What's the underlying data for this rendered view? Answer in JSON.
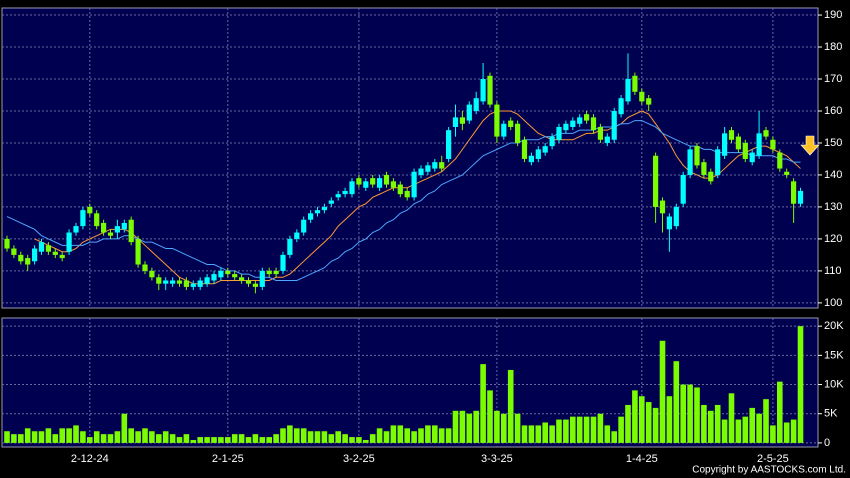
{
  "chart_data": {
    "type": "candlestick",
    "categories": [
      null,
      null,
      null,
      null,
      null,
      null,
      null,
      null,
      null,
      null,
      null,
      null,
      "2-12-24",
      null,
      null,
      null,
      null,
      null,
      null,
      null,
      null,
      null,
      null,
      null,
      null,
      null,
      null,
      null,
      null,
      null,
      null,
      null,
      "2-1-25",
      null,
      null,
      null,
      null,
      null,
      null,
      null,
      null,
      null,
      null,
      null,
      null,
      null,
      null,
      null,
      null,
      null,
      null,
      "3-2-25",
      null,
      null,
      null,
      null,
      null,
      null,
      null,
      null,
      null,
      null,
      null,
      null,
      null,
      null,
      null,
      null,
      null,
      null,
      null,
      "3-3-25",
      null,
      null,
      null,
      null,
      null,
      null,
      null,
      null,
      null,
      null,
      null,
      null,
      null,
      null,
      null,
      null,
      null,
      null,
      null,
      null,
      "1-4-25",
      null,
      null,
      null,
      null,
      null,
      null,
      null,
      null,
      null,
      null,
      null,
      null,
      null,
      null,
      null,
      null,
      null,
      null,
      "2-5-25",
      null,
      null,
      null,
      null
    ],
    "open": [
      120,
      117,
      115,
      114,
      113,
      116,
      118,
      116,
      115,
      116,
      122,
      124,
      130,
      128,
      125,
      122,
      122,
      123,
      126,
      120,
      112,
      110,
      108,
      106,
      106,
      107,
      107,
      105,
      105,
      106,
      107,
      108,
      110,
      109,
      108,
      107,
      106,
      105,
      110,
      110,
      110,
      115,
      120,
      122,
      126,
      128,
      129,
      131,
      133,
      134,
      134,
      139,
      136,
      139,
      136,
      140,
      138,
      137,
      135,
      133,
      140,
      141,
      142,
      144,
      145,
      155,
      158,
      157,
      160,
      163,
      171,
      162,
      152,
      157,
      156,
      151,
      144,
      145,
      147,
      149,
      151,
      154,
      155,
      156,
      159,
      158,
      155,
      150,
      151,
      159,
      163,
      171,
      166,
      164,
      146,
      132,
      123,
      124,
      131,
      140,
      149,
      144,
      141,
      140,
      146,
      154,
      152,
      150,
      144,
      146,
      154,
      151,
      147,
      141,
      138,
      131
    ],
    "high": [
      121,
      118,
      116,
      115,
      118,
      120,
      119,
      117,
      116,
      123,
      125,
      130,
      131,
      129,
      126,
      123,
      126,
      126,
      127,
      121,
      113,
      111,
      109,
      108,
      108,
      108,
      108,
      107,
      108,
      109,
      110,
      111,
      111,
      110,
      109,
      108,
      107,
      111,
      111,
      111,
      116,
      121,
      123,
      127,
      129,
      130,
      131,
      133,
      135,
      136,
      139,
      140,
      139,
      140,
      140,
      141,
      139,
      138,
      136,
      142,
      143,
      144,
      145,
      146,
      155,
      162,
      160,
      163,
      166,
      175,
      172,
      163,
      157,
      158,
      157,
      152,
      147,
      149,
      150,
      153,
      156,
      157,
      158,
      159,
      160,
      159,
      156,
      153,
      161,
      165,
      178,
      172,
      167,
      165,
      147,
      133,
      128,
      131,
      141,
      149,
      150,
      145,
      142,
      149,
      155,
      155,
      153,
      151,
      148,
      160,
      155,
      152,
      148,
      142,
      139,
      136
    ],
    "low": [
      116,
      114,
      112,
      110,
      112,
      115,
      115,
      114,
      113,
      115,
      121,
      123,
      127,
      123,
      121,
      120,
      120,
      122,
      118,
      111,
      109,
      107,
      104,
      104,
      105,
      105,
      104,
      104,
      104,
      105,
      106,
      107,
      108,
      107,
      106,
      105,
      103,
      104,
      108,
      108,
      109,
      114,
      119,
      121,
      125,
      127,
      128,
      130,
      132,
      133,
      133,
      136,
      135,
      136,
      135,
      136,
      135,
      133,
      132,
      132,
      139,
      140,
      141,
      141,
      144,
      152,
      154,
      156,
      159,
      162,
      161,
      150,
      151,
      154,
      149,
      144,
      143,
      144,
      146,
      148,
      150,
      153,
      154,
      155,
      156,
      153,
      150,
      149,
      150,
      158,
      162,
      165,
      162,
      160,
      125,
      122,
      116,
      123,
      130,
      139,
      142,
      139,
      137,
      139,
      145,
      150,
      147,
      144,
      143,
      145,
      151,
      147,
      141,
      139,
      125,
      130
    ],
    "close": [
      117,
      115,
      113,
      112,
      117,
      119,
      116,
      115,
      114,
      122,
      124,
      129,
      128,
      124,
      122,
      121,
      124,
      125,
      119,
      112,
      110,
      108,
      106,
      107,
      107,
      106,
      105,
      106,
      107,
      108,
      109,
      110,
      109,
      108,
      107,
      106,
      105,
      110,
      109,
      109,
      115,
      120,
      122,
      126,
      128,
      129,
      130,
      132,
      134,
      135,
      138,
      137,
      138,
      137,
      139,
      137,
      136,
      134,
      133,
      141,
      142,
      143,
      144,
      142,
      154,
      158,
      156,
      162,
      164,
      170,
      162,
      152,
      156,
      155,
      150,
      145,
      146,
      148,
      149,
      152,
      155,
      156,
      157,
      158,
      157,
      154,
      151,
      152,
      160,
      164,
      170,
      166,
      163,
      162,
      130,
      128,
      127,
      130,
      140,
      148,
      143,
      140,
      138,
      148,
      153,
      151,
      148,
      145,
      147,
      153,
      152,
      148,
      142,
      140,
      131,
      135
    ],
    "up_color": "#00ffff",
    "down_color": "#7cfc00",
    "series": [
      {
        "color": "#ff9933",
        "values": [
          null,
          null,
          null,
          null,
          120,
          119,
          118,
          117,
          116,
          116,
          117,
          119,
          120,
          121,
          122,
          123,
          123,
          123,
          122,
          120,
          118,
          116,
          114,
          112,
          110,
          108,
          107,
          106,
          106,
          106,
          106,
          107,
          107,
          107,
          107,
          107,
          107,
          107,
          107,
          108,
          108,
          109,
          111,
          113,
          115,
          117,
          119,
          121,
          124,
          126,
          128,
          130,
          131,
          133,
          134,
          135,
          136,
          136,
          136,
          137,
          138,
          139,
          140,
          141,
          143,
          145,
          148,
          151,
          154,
          157,
          159,
          160,
          160,
          160,
          159,
          157,
          155,
          153,
          152,
          151,
          151,
          151,
          151,
          152,
          153,
          153,
          154,
          154,
          155,
          156,
          158,
          159,
          160,
          159,
          156,
          153,
          150,
          146,
          143,
          141,
          140,
          139,
          139,
          140,
          142,
          144,
          146,
          147,
          148,
          149,
          149,
          148,
          147,
          146,
          144,
          142
        ]
      },
      {
        "color": "#4da6ff",
        "values": [
          127,
          126,
          125,
          124,
          123,
          121,
          120,
          119,
          118,
          118,
          118,
          118,
          119,
          119,
          120,
          120,
          120,
          121,
          121,
          120,
          119,
          119,
          118,
          117,
          117,
          116,
          115,
          114,
          113,
          112,
          112,
          111,
          110,
          110,
          109,
          109,
          108,
          108,
          108,
          107,
          107,
          107,
          107,
          108,
          109,
          110,
          111,
          113,
          114,
          116,
          117,
          119,
          120,
          122,
          123,
          125,
          126,
          128,
          129,
          131,
          132,
          134,
          135,
          137,
          138,
          139,
          140,
          142,
          144,
          146,
          147,
          148,
          149,
          150,
          150,
          151,
          151,
          151,
          152,
          152,
          153,
          153,
          153,
          154,
          154,
          154,
          155,
          155,
          155,
          156,
          156,
          157,
          157,
          156,
          155,
          153,
          152,
          151,
          150,
          149,
          149,
          148,
          148,
          147,
          147,
          147,
          147,
          147,
          146,
          146,
          146,
          146,
          145,
          145,
          144,
          144
        ]
      }
    ],
    "ylim": [
      98.4,
      192.2
    ],
    "yticks": [
      100,
      110,
      120,
      130,
      140,
      150,
      160,
      170,
      180,
      190
    ],
    "grid": true,
    "volume": {
      "color": "#7cfc00",
      "ylim": [
        -700,
        21400
      ],
      "values": [
        2000,
        1500,
        1500,
        2500,
        2000,
        2000,
        2500,
        1500,
        2500,
        2500,
        3000,
        2000,
        1000,
        2000,
        1500,
        1500,
        2000,
        5000,
        2500,
        2000,
        2500,
        2000,
        1500,
        2000,
        1500,
        1000,
        1500,
        500,
        1000,
        1000,
        1000,
        1000,
        1000,
        1500,
        1500,
        1000,
        1500,
        1000,
        1000,
        1500,
        2500,
        3000,
        2500,
        2500,
        2000,
        2000,
        2000,
        1500,
        2000,
        1500,
        1000,
        1000,
        500,
        1500,
        2500,
        2000,
        3000,
        3000,
        2500,
        2000,
        2500,
        3000,
        3000,
        2500,
        2500,
        5500,
        5500,
        5000,
        5500,
        13500,
        9000,
        5500,
        5000,
        12500,
        5000,
        3000,
        3000,
        3000,
        3500,
        3000,
        4000,
        4000,
        4500,
        4500,
        4500,
        4500,
        5000,
        3000,
        2000,
        4500,
        6500,
        9000,
        8000,
        7000,
        6000,
        17500,
        8000,
        14000,
        10000,
        10000,
        9500,
        6500,
        5500,
        6500,
        4000,
        8500,
        4000,
        4500,
        6000,
        5000,
        7500,
        3000,
        10500,
        3500,
        4000,
        20000
      ],
      "yticks": [
        0,
        {
          "value": 5000,
          "label": "5K"
        },
        {
          "value": 10000,
          "label": "10K"
        },
        {
          "value": 15000,
          "label": "15K"
        },
        {
          "value": 20000,
          "label": "20K"
        }
      ]
    },
    "footer": "Copyright by AASTOCKS.com Ltd."
  }
}
